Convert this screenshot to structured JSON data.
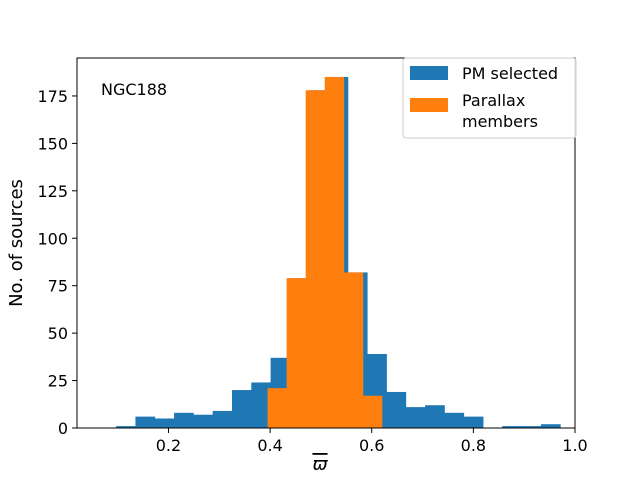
{
  "chart_data": {
    "type": "bar",
    "subtype": "histogram",
    "annotation": "NGC188",
    "xlabel": "ϖ",
    "ylabel": "No. of sources",
    "xlim": [
      0.02,
      1.0
    ],
    "ylim": [
      0,
      195
    ],
    "xticks": [
      0.2,
      0.4,
      0.6,
      0.8,
      1.0
    ],
    "xtick_labels": [
      "0.2",
      "0.4",
      "0.6",
      "0.8",
      "1.0"
    ],
    "yticks": [
      0,
      25,
      50,
      75,
      100,
      125,
      150,
      175
    ],
    "ytick_labels": [
      "0",
      "25",
      "50",
      "75",
      "100",
      "125",
      "150",
      "175"
    ],
    "legend_position": "top-right",
    "series": [
      {
        "name": "PM selected",
        "color": "#1f77b4",
        "bin_width": 0.038,
        "bin_starts": [
          0.097,
          0.135,
          0.173,
          0.211,
          0.249,
          0.287,
          0.325,
          0.363,
          0.401,
          0.439,
          0.477,
          0.515,
          0.553,
          0.591,
          0.629,
          0.667,
          0.705,
          0.743,
          0.781,
          0.819,
          0.857,
          0.895,
          0.933
        ],
        "values": [
          1,
          6,
          5,
          8,
          7,
          9,
          20,
          24,
          37,
          79,
          178,
          185,
          82,
          39,
          19,
          11,
          12,
          8,
          6,
          0,
          1,
          1,
          2
        ]
      },
      {
        "name": "Parallax members",
        "legend_label_lines": [
          "Parallax",
          "members"
        ],
        "color": "#ff7f0e",
        "bin_width": 0.0375,
        "bin_starts": [
          0.395,
          0.4325,
          0.47,
          0.5075,
          0.545,
          0.5825
        ],
        "values": [
          21,
          79,
          178,
          185,
          82,
          17
        ]
      }
    ]
  }
}
